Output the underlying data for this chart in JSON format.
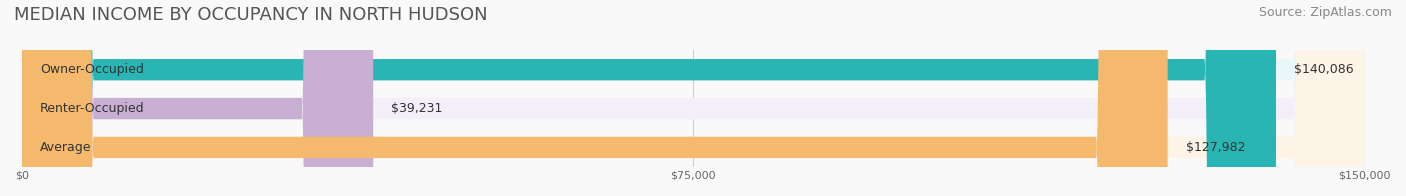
{
  "title": "MEDIAN INCOME BY OCCUPANCY IN NORTH HUDSON",
  "source": "Source: ZipAtlas.com",
  "categories": [
    "Owner-Occupied",
    "Renter-Occupied",
    "Average"
  ],
  "values": [
    140086,
    39231,
    127982
  ],
  "labels": [
    "$140,086",
    "$39,231",
    "$127,982"
  ],
  "bar_colors": [
    "#2ab5b5",
    "#c9aed4",
    "#f5b96e"
  ],
  "bar_bg_colors": [
    "#e8f7f7",
    "#f3eef7",
    "#fdf3e7"
  ],
  "xlim": [
    0,
    150000
  ],
  "xticks": [
    0,
    75000,
    150000
  ],
  "xtick_labels": [
    "$0",
    "$75,000",
    "$150,000"
  ],
  "title_fontsize": 13,
  "source_fontsize": 9,
  "label_fontsize": 9,
  "bar_height": 0.55,
  "background_color": "#f9f9f9"
}
